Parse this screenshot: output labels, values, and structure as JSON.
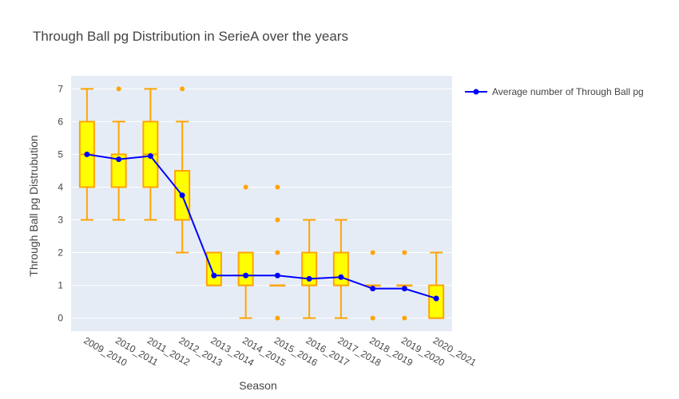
{
  "chart_data": {
    "type": "box",
    "title": "Through Ball pg Distribution in SerieA over the years",
    "xlabel": "Season",
    "ylabel": "Through Ball pg Distrubution",
    "ylim": [
      -0.4,
      7.4
    ],
    "yticks": [
      0,
      1,
      2,
      3,
      4,
      5,
      6,
      7
    ],
    "grid": true,
    "legend_position": "top-right",
    "categories": [
      "2009_2010",
      "2010_2011",
      "2011_2012",
      "2012_2013",
      "2013_2014",
      "2014_2015",
      "2015_2016",
      "2016_2017",
      "2017_2018",
      "2018_2019",
      "2019_2020",
      "2020_2021"
    ],
    "box_series": {
      "boxes": [
        {
          "min": 3,
          "q1": 4,
          "median": 5,
          "q3": 6,
          "max": 7,
          "outliers": []
        },
        {
          "min": 3,
          "q1": 4,
          "median": 5,
          "q3": 5,
          "max": 6,
          "outliers": [
            7
          ]
        },
        {
          "min": 3,
          "q1": 4,
          "median": 5,
          "q3": 6,
          "max": 7,
          "outliers": []
        },
        {
          "min": 2,
          "q1": 3,
          "median": 3,
          "q3": 4.5,
          "max": 6,
          "outliers": [
            7
          ]
        },
        {
          "min": 1,
          "q1": 1,
          "median": 1,
          "q3": 2,
          "max": 2,
          "outliers": []
        },
        {
          "min": 0,
          "q1": 1,
          "median": 1,
          "q3": 2,
          "max": 2,
          "outliers": [
            4
          ]
        },
        {
          "min": 1,
          "q1": 1,
          "median": 1,
          "q3": 1,
          "max": 1,
          "outliers": [
            0,
            2,
            3,
            4
          ]
        },
        {
          "min": 0,
          "q1": 1,
          "median": 1,
          "q3": 2,
          "max": 3,
          "outliers": []
        },
        {
          "min": 0,
          "q1": 1,
          "median": 1,
          "q3": 2,
          "max": 3,
          "outliers": []
        },
        {
          "min": 1,
          "q1": 1,
          "median": 1,
          "q3": 1,
          "max": 1,
          "outliers": [
            0,
            2
          ]
        },
        {
          "min": 1,
          "q1": 1,
          "median": 1,
          "q3": 1,
          "max": 1,
          "outliers": [
            0,
            2
          ]
        },
        {
          "min": 0,
          "q1": 0,
          "median": 0,
          "q3": 1,
          "max": 2,
          "outliers": []
        }
      ],
      "box_fill": "#ffff00",
      "box_line": "#ffa500"
    },
    "series": [
      {
        "name": "Average number of Through Ball pg",
        "type": "line",
        "color": "#0000ff",
        "values": [
          5.0,
          4.85,
          4.95,
          3.75,
          1.3,
          1.3,
          1.3,
          1.2,
          1.25,
          0.9,
          0.9,
          0.6
        ]
      }
    ]
  }
}
